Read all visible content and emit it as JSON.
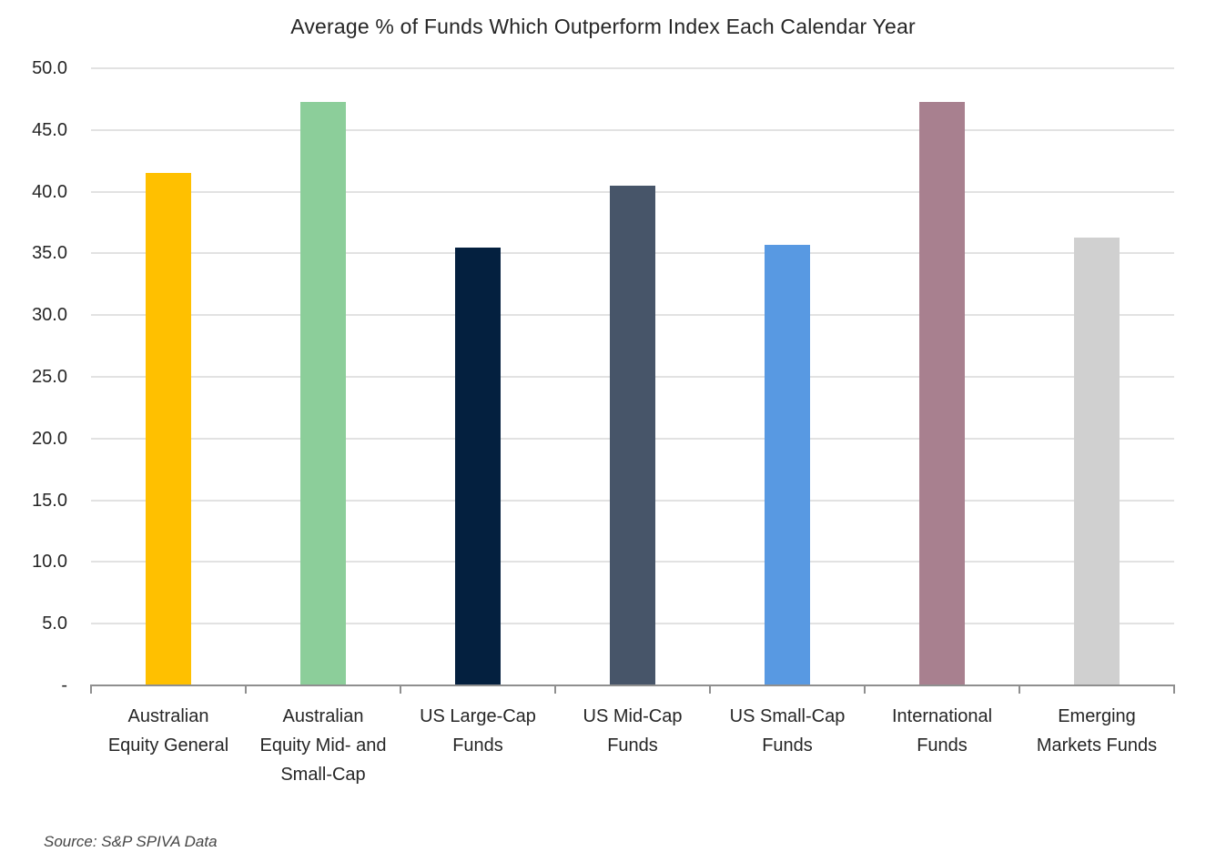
{
  "title": "Average % of Funds Which Outperform Index Each Calendar Year",
  "source_note": "Source: S&P SPIVA Data",
  "chart_data": {
    "type": "bar",
    "title": "Average % of Funds Which Outperform Index Each Calendar Year",
    "categories": [
      "Australian Equity General",
      "Australian Equity Mid- and Small-Cap",
      "US Large-Cap Funds",
      "US Mid-Cap Funds",
      "US Small-Cap Funds",
      "International Funds",
      "Emerging Markets Funds"
    ],
    "category_label_lines": [
      [
        "Australian",
        "Equity General"
      ],
      [
        "Australian",
        "Equity Mid- and",
        "Small-Cap"
      ],
      [
        "US Large-Cap",
        "Funds"
      ],
      [
        "US Mid-Cap",
        "Funds"
      ],
      [
        "US Small-Cap",
        "Funds"
      ],
      [
        "International",
        "Funds"
      ],
      [
        "Emerging",
        "Markets Funds"
      ]
    ],
    "values": [
      41.5,
      47.3,
      35.5,
      40.5,
      35.7,
      47.3,
      36.3
    ],
    "bar_colors": [
      "#FFC000",
      "#8CCE9A",
      "#04203F",
      "#475569",
      "#5899E2",
      "#A8808F",
      "#D0D0D0"
    ],
    "xlabel": "",
    "ylabel": "",
    "ylim": [
      0,
      50
    ],
    "ytick_step": 5,
    "ytick_labels": [
      "-",
      "5.0",
      "10.0",
      "15.0",
      "20.0",
      "25.0",
      "30.0",
      "35.0",
      "40.0",
      "45.0",
      "50.0"
    ],
    "grid": true,
    "legend": false,
    "units": "percent"
  },
  "style_colors": {
    "gridline": "#e2e2e2",
    "axis_line": "#8f8f8f",
    "text": "#262626",
    "source_text": "#454545"
  }
}
